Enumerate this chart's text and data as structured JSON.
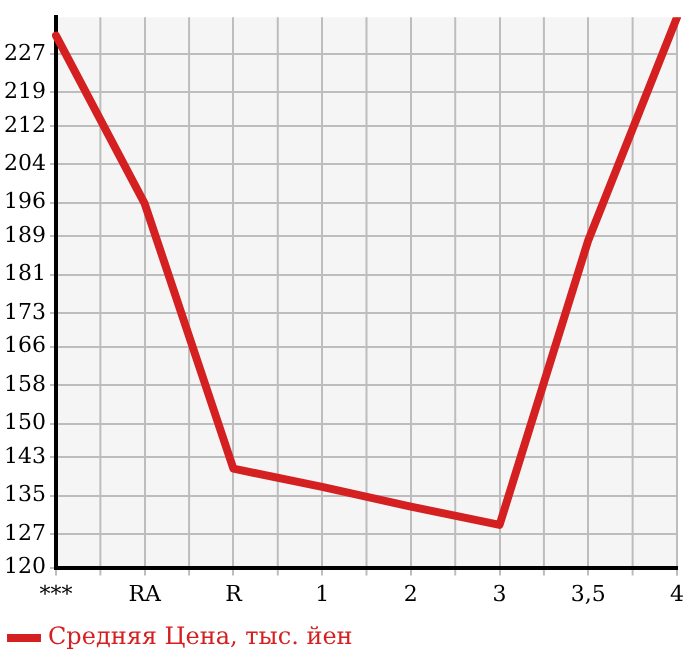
{
  "chart_data": {
    "type": "line",
    "categories": [
      "***",
      "RA",
      "R",
      "1",
      "2",
      "3",
      "3,5",
      "4"
    ],
    "series": [
      {
        "name": "Средняя Цена, тыс. йен",
        "color": "#d42020",
        "values": [
          230.8,
          195.8,
          140.6,
          136.8,
          132.7,
          128.9,
          188.2,
          234.6
        ]
      }
    ],
    "ylim": [
      120,
      234.64
    ],
    "yticks": [
      120,
      127,
      135,
      143,
      150,
      158,
      166,
      173,
      181,
      189,
      196,
      204,
      212,
      219,
      227
    ],
    "grid": true,
    "legend": "bottom",
    "marker": "none",
    "line_style": "solid"
  }
}
